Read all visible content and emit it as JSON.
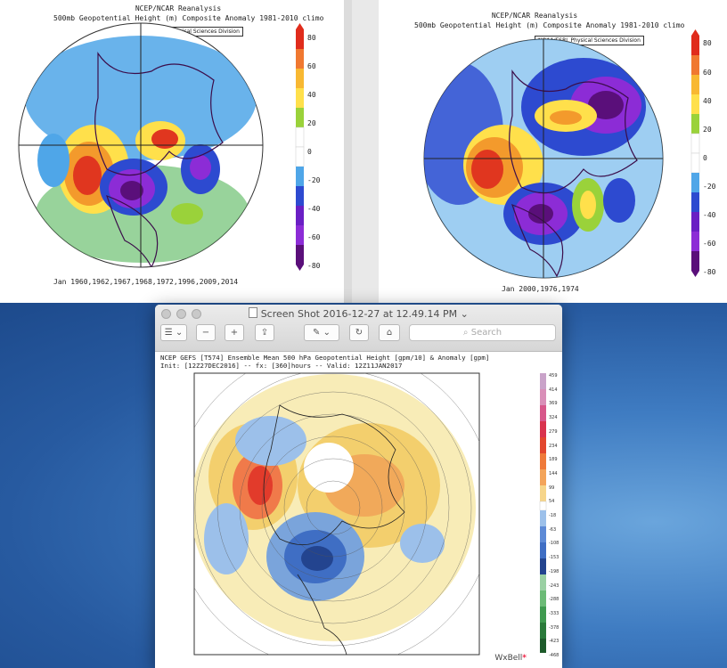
{
  "map_left": {
    "title_line1": "NCEP/NCAR Reanalysis",
    "title_line2": "500mb Geopotential Height (m) Composite Anomaly 1981-2010 climo",
    "credit": "NOAA/ESRL Physical Sciences Division",
    "dates": "Jan 1960,1962,1967,1968,1972,1996,2009,2014",
    "colorbar_labels": [
      "80",
      "60",
      "40",
      "20",
      "0",
      "-20",
      "-40",
      "-60",
      "-80"
    ]
  },
  "map_right": {
    "title_line1": "NCEP/NCAR Reanalysis",
    "title_line2": "500mb Geopotential Height (m) Composite Anomaly 1981-2010 climo",
    "credit": "NOAA/ESRL Physical Sciences Division",
    "dates": "Jan 2000,1976,1974",
    "colorbar_labels": [
      "80",
      "60",
      "40",
      "20",
      "0",
      "-20",
      "-40",
      "-60",
      "-80"
    ]
  },
  "preview_window": {
    "title": "Screen Shot 2016-12-27 at 12.49.14 PM",
    "title_chevron": "⌄",
    "toolbar": {
      "sidebar": "☰ ⌄",
      "zoom_out": "−",
      "zoom_in": "+",
      "share": "⇪",
      "markup": "✎ ⌄",
      "rotate": "↻",
      "toolbox": "⌂",
      "search_placeholder": "Search"
    },
    "figure": {
      "line1": "NCEP GEFS [T574] Ensemble Mean 500 hPa Geopotential Height [gpm/10] & Anomaly [gpm]",
      "line2": "Init: [12Z27DEC2016] -- fx: [360]hours -- Valid: 12Z11JAN2017",
      "colorbar_labels": [
        "459",
        "414",
        "369",
        "324",
        "279",
        "234",
        "189",
        "144",
        "99",
        "54",
        "-18",
        "-63",
        "-108",
        "-153",
        "-198",
        "-243",
        "-288",
        "-333",
        "-378",
        "-423",
        "-468"
      ],
      "brand": "WxBell",
      "brand_mark": "*"
    }
  }
}
